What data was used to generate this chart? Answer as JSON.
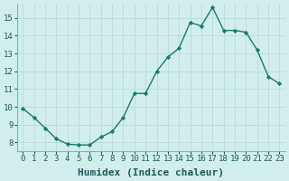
{
  "x": [
    0,
    1,
    2,
    3,
    4,
    5,
    6,
    7,
    8,
    9,
    10,
    11,
    12,
    13,
    14,
    15,
    16,
    17,
    18,
    19,
    20,
    21,
    22,
    23
  ],
  "y": [
    9.9,
    9.4,
    8.8,
    8.2,
    7.9,
    7.85,
    7.85,
    8.3,
    8.6,
    9.4,
    10.75,
    10.75,
    12.0,
    12.8,
    13.3,
    14.75,
    14.55,
    15.6,
    14.3,
    14.3,
    14.2,
    13.2,
    11.7,
    11.3
  ],
  "xlabel": "Humidex (Indice chaleur)",
  "line_color": "#1a7a6e",
  "marker_color": "#1a7a6e",
  "bg_color": "#d2eeec",
  "grid_color": "#b8dbd8",
  "xlim": [
    -0.5,
    23.5
  ],
  "ylim": [
    7.5,
    15.8
  ],
  "xticks": [
    0,
    1,
    2,
    3,
    4,
    5,
    6,
    7,
    8,
    9,
    10,
    11,
    12,
    13,
    14,
    15,
    16,
    17,
    18,
    19,
    20,
    21,
    22,
    23
  ],
  "yticks": [
    8,
    9,
    10,
    11,
    12,
    13,
    14,
    15
  ],
  "tick_label_fontsize": 6.5,
  "xlabel_fontsize": 8.0
}
